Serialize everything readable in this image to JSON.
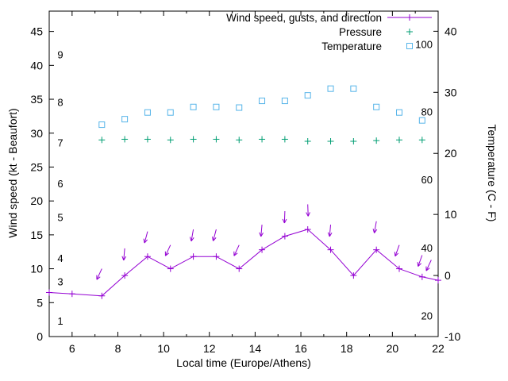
{
  "figure": {
    "xlabel": "Local time (Europe/Athens)",
    "ylabel_left": "Wind speed (kt - Beaufort)",
    "ylabel_right": "Temperature (C - F)",
    "background": "#ffffff",
    "frame_color": "#000000"
  },
  "legend": [
    {
      "label": "Wind speed, gusts, and direction",
      "series": "wind"
    },
    {
      "label": "Pressure",
      "series": "pressure"
    },
    {
      "label": "Temperature",
      "series": "temperature"
    }
  ],
  "chart_data": {
    "type": "line",
    "x_axis": {
      "label": "Local time (Europe/Athens)",
      "range": [
        5,
        22
      ],
      "ticks": [
        6,
        8,
        10,
        12,
        14,
        16,
        18,
        20,
        22
      ]
    },
    "y_left": {
      "label": "Wind speed (kt - Beaufort)",
      "range": [
        0,
        48
      ],
      "ticks": [
        0,
        5,
        10,
        15,
        20,
        25,
        30,
        35,
        40,
        45
      ]
    },
    "y_right": {
      "label": "Temperature (C - F)",
      "range": [
        -10,
        43.3
      ],
      "ticks": [
        -10,
        0,
        10,
        20,
        30,
        40
      ]
    },
    "grid": false,
    "legend_position": "top-right-inside",
    "beaufort_labels": [
      {
        "label": "1",
        "kt": 2.2
      },
      {
        "label": "3",
        "kt": 8.0
      },
      {
        "label": "4",
        "kt": 11.5
      },
      {
        "label": "5",
        "kt": 17.5
      },
      {
        "label": "6",
        "kt": 22.5
      },
      {
        "label": "7",
        "kt": 28.5
      },
      {
        "label": "8",
        "kt": 34.5
      },
      {
        "label": "9",
        "kt": 41.5
      }
    ],
    "fahrenheit_labels": [
      {
        "label": "20",
        "c": -6.7
      },
      {
        "label": "40",
        "c": 4.4
      },
      {
        "label": "60",
        "c": 15.6
      },
      {
        "label": "80",
        "c": 26.7
      },
      {
        "label": "100",
        "c": 37.8
      }
    ],
    "series": {
      "wind": {
        "name": "Wind speed, gusts, and direction",
        "color": "#9400d3",
        "marker": "plus",
        "x": [
          5.0,
          6.0,
          7.3,
          8.3,
          9.3,
          10.3,
          11.3,
          12.3,
          13.3,
          14.3,
          15.3,
          16.3,
          17.3,
          18.3,
          19.3,
          20.3,
          21.3,
          22.0
        ],
        "values": [
          6.5,
          6.3,
          6.0,
          9.0,
          11.8,
          10.0,
          11.8,
          11.8,
          10.0,
          12.8,
          14.8,
          15.8,
          12.8,
          9.0,
          12.8,
          10.0,
          8.8,
          8.3
        ]
      },
      "gusts": {
        "name": "Gusts with direction arrows",
        "color": "#9400d3",
        "points": [
          {
            "x": 7.3,
            "v": 10.0,
            "dir": 205
          },
          {
            "x": 8.3,
            "v": 13.0,
            "dir": 185
          },
          {
            "x": 9.3,
            "v": 15.5,
            "dir": 195
          },
          {
            "x": 10.3,
            "v": 13.5,
            "dir": 205
          },
          {
            "x": 11.3,
            "v": 15.8,
            "dir": 190
          },
          {
            "x": 12.3,
            "v": 15.8,
            "dir": 195
          },
          {
            "x": 13.3,
            "v": 13.5,
            "dir": 205
          },
          {
            "x": 14.3,
            "v": 16.5,
            "dir": 185
          },
          {
            "x": 15.3,
            "v": 18.5,
            "dir": 182
          },
          {
            "x": 16.3,
            "v": 19.5,
            "dir": 178
          },
          {
            "x": 17.3,
            "v": 16.5,
            "dir": 185
          },
          {
            "x": 19.3,
            "v": 17.0,
            "dir": 190
          },
          {
            "x": 20.3,
            "v": 13.5,
            "dir": 200
          },
          {
            "x": 21.3,
            "v": 12.0,
            "dir": 200
          },
          {
            "x": 21.7,
            "v": 11.3,
            "dir": 205
          }
        ]
      },
      "pressure": {
        "name": "Pressure",
        "color": "#009e73",
        "marker": "plus",
        "x": [
          7.3,
          8.3,
          9.3,
          10.3,
          11.3,
          12.3,
          13.3,
          14.3,
          15.3,
          16.3,
          17.3,
          18.3,
          19.3,
          20.3,
          21.3
        ],
        "values_kt_axis": [
          29.0,
          29.1,
          29.1,
          29.0,
          29.1,
          29.1,
          29.0,
          29.1,
          29.1,
          28.8,
          28.8,
          28.8,
          28.9,
          29.0,
          29.0
        ]
      },
      "temperature": {
        "name": "Temperature",
        "color": "#56b4e9",
        "marker": "open-square",
        "x": [
          7.3,
          8.3,
          9.3,
          10.3,
          11.3,
          12.3,
          13.3,
          14.3,
          15.3,
          16.3,
          17.3,
          18.3,
          19.3,
          20.3,
          21.3
        ],
        "values_c": [
          24.7,
          25.6,
          26.7,
          26.7,
          27.6,
          27.6,
          27.5,
          28.6,
          28.6,
          29.5,
          30.6,
          30.6,
          27.6,
          26.7,
          25.4
        ]
      }
    }
  }
}
